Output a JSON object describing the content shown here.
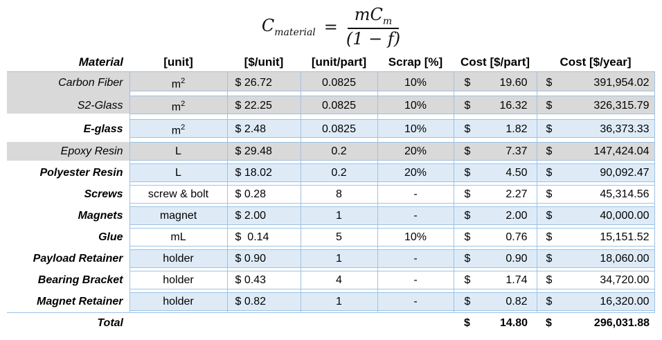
{
  "formula": {
    "lhs_base": "C",
    "lhs_sub": "material",
    "equals": "=",
    "numerator_base": "mC",
    "numerator_sub": "m",
    "denominator": "(1 − f)"
  },
  "colors": {
    "gray_fill": "#D9D9D9",
    "blue_fill": "#DEEBF7",
    "border_blue": "#9CC2E5"
  },
  "table": {
    "currency_symbol": "$",
    "headers": [
      "Material",
      "[unit]",
      "[$/unit]",
      "[unit/part]",
      "Scrap [%]",
      "Cost [$/part]",
      "Cost [$/year]"
    ],
    "rows": [
      {
        "material": "Carbon Fiber",
        "unit": "m²",
        "unit_cost": "$ 26.72",
        "unit_per_part": "0.0825",
        "scrap": "10%",
        "cost_part": "19.60",
        "cost_year": "391,954.02",
        "shade": "gray",
        "emphasis": false
      },
      {
        "material": "S2-Glass",
        "unit": "m²",
        "unit_cost": "$ 22.25",
        "unit_per_part": "0.0825",
        "scrap": "10%",
        "cost_part": "16.32",
        "cost_year": "326,315.79",
        "shade": "gray",
        "emphasis": false
      },
      {
        "material": "E-glass",
        "unit": "m²",
        "unit_cost": "$ 2.48",
        "unit_per_part": "0.0825",
        "scrap": "10%",
        "cost_part": "1.82",
        "cost_year": "36,373.33",
        "shade": "blue",
        "emphasis": true
      },
      {
        "material": "Epoxy Resin",
        "unit": "L",
        "unit_cost": "$ 29.48",
        "unit_per_part": "0.2",
        "scrap": "20%",
        "cost_part": "7.37",
        "cost_year": "147,424.04",
        "shade": "gray",
        "emphasis": false
      },
      {
        "material": "Polyester Resin",
        "unit": "L",
        "unit_cost": "$ 18.02",
        "unit_per_part": "0.2",
        "scrap": "20%",
        "cost_part": "4.50",
        "cost_year": "90,092.47",
        "shade": "blue",
        "emphasis": true
      },
      {
        "material": "Screws",
        "unit": "screw & bolt",
        "unit_cost": "$ 0.28",
        "unit_per_part": "8",
        "scrap": "-",
        "cost_part": "2.27",
        "cost_year": "45,314.56",
        "shade": "white",
        "emphasis": true
      },
      {
        "material": "Magnets",
        "unit": "magnet",
        "unit_cost": "$ 2.00",
        "unit_per_part": "1",
        "scrap": "-",
        "cost_part": "2.00",
        "cost_year": "40,000.00",
        "shade": "blue",
        "emphasis": true
      },
      {
        "material": "Glue",
        "unit": "mL",
        "unit_cost": "$  0.14",
        "unit_per_part": "5",
        "scrap": "10%",
        "cost_part": "0.76",
        "cost_year": "15,151.52",
        "shade": "white",
        "emphasis": true
      },
      {
        "material": "Payload Retainer",
        "unit": "holder",
        "unit_cost": "$ 0.90",
        "unit_per_part": "1",
        "scrap": "-",
        "cost_part": "0.90",
        "cost_year": "18,060.00",
        "shade": "blue",
        "emphasis": true
      },
      {
        "material": "Bearing Bracket",
        "unit": "holder",
        "unit_cost": "$ 0.43",
        "unit_per_part": "4",
        "scrap": "-",
        "cost_part": "1.74",
        "cost_year": "34,720.00",
        "shade": "white",
        "emphasis": true
      },
      {
        "material": "Magnet Retainer",
        "unit": "holder",
        "unit_cost": "$ 0.82",
        "unit_per_part": "1",
        "scrap": "-",
        "cost_part": "0.82",
        "cost_year": "16,320.00",
        "shade": "blue",
        "emphasis": true
      }
    ],
    "total": {
      "label": "Total",
      "cost_part": "14.80",
      "cost_year": "296,031.88"
    }
  },
  "chart_data": {
    "type": "table",
    "title": "C_material = m*C_m / (1 - f)",
    "columns": [
      "Material",
      "[unit]",
      "[$/unit]",
      "[unit/part]",
      "Scrap [%]",
      "Cost [$/part]",
      "Cost [$/year]"
    ],
    "rows": [
      [
        "Carbon Fiber",
        "m^2",
        26.72,
        0.0825,
        "10%",
        19.6,
        391954.02
      ],
      [
        "S2-Glass",
        "m^2",
        22.25,
        0.0825,
        "10%",
        16.32,
        326315.79
      ],
      [
        "E-glass",
        "m^2",
        2.48,
        0.0825,
        "10%",
        1.82,
        36373.33
      ],
      [
        "Epoxy Resin",
        "L",
        29.48,
        0.2,
        "20%",
        7.37,
        147424.04
      ],
      [
        "Polyester Resin",
        "L",
        18.02,
        0.2,
        "20%",
        4.5,
        90092.47
      ],
      [
        "Screws",
        "screw & bolt",
        0.28,
        8,
        "-",
        2.27,
        45314.56
      ],
      [
        "Magnets",
        "magnet",
        2.0,
        1,
        "-",
        2.0,
        40000.0
      ],
      [
        "Glue",
        "mL",
        0.14,
        5,
        "10%",
        0.76,
        15151.52
      ],
      [
        "Payload Retainer",
        "holder",
        0.9,
        1,
        "-",
        0.9,
        18060.0
      ],
      [
        "Bearing Bracket",
        "holder",
        0.43,
        4,
        "-",
        1.74,
        34720.0
      ],
      [
        "Magnet Retainer",
        "holder",
        0.82,
        1,
        "-",
        0.82,
        16320.0
      ],
      [
        "Total",
        "",
        "",
        "",
        "",
        14.8,
        296031.88
      ]
    ]
  }
}
